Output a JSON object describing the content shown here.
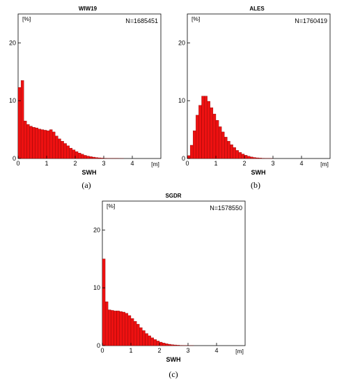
{
  "chart_data": [
    {
      "type": "bar",
      "panel_letter": "(a)",
      "title": "WIW19",
      "count_text": "N=1685451",
      "xlabel": "SWH",
      "x_unit": "[m]",
      "y_unit": "[%]",
      "bin_width": 0.1,
      "xlim": [
        0,
        5
      ],
      "ylim": [
        0,
        25
      ],
      "xticks": [
        0,
        1,
        2,
        3,
        4
      ],
      "yticks": [
        0,
        10,
        20
      ],
      "bar_color": "#ee1111",
      "values": [
        12.3,
        13.5,
        6.5,
        5.9,
        5.6,
        5.4,
        5.3,
        5.1,
        5.0,
        4.9,
        4.8,
        5.0,
        4.6,
        3.9,
        3.4,
        3.0,
        2.6,
        2.2,
        1.8,
        1.5,
        1.2,
        0.95,
        0.75,
        0.55,
        0.42,
        0.32,
        0.24,
        0.17,
        0.12,
        0.08,
        0.05,
        0.04,
        0.03,
        0.02,
        0.02,
        0.01,
        0.01
      ]
    },
    {
      "type": "bar",
      "panel_letter": "(b)",
      "title": "ALES",
      "count_text": "N=1760419",
      "xlabel": "SWH",
      "x_unit": "[m]",
      "y_unit": "[%]",
      "bin_width": 0.1,
      "xlim": [
        0,
        5
      ],
      "ylim": [
        0,
        25
      ],
      "xticks": [
        0,
        1,
        2,
        3,
        4
      ],
      "yticks": [
        0,
        10,
        20
      ],
      "bar_color": "#ee1111",
      "values": [
        0.5,
        2.3,
        4.8,
        7.5,
        9.2,
        10.8,
        10.8,
        9.9,
        8.8,
        7.7,
        6.6,
        5.5,
        4.6,
        3.7,
        3.0,
        2.4,
        1.9,
        1.4,
        1.05,
        0.78,
        0.56,
        0.4,
        0.28,
        0.18,
        0.12,
        0.08,
        0.05,
        0.03,
        0.02,
        0.01
      ]
    },
    {
      "type": "bar",
      "panel_letter": "(c)",
      "title": "SGDR",
      "count_text": "N=1578550",
      "xlabel": "SWH",
      "x_unit": "[m]",
      "y_unit": "[%]",
      "bin_width": 0.1,
      "xlim": [
        0,
        5
      ],
      "ylim": [
        0,
        25
      ],
      "xticks": [
        0,
        1,
        2,
        3,
        4
      ],
      "yticks": [
        0,
        10,
        20
      ],
      "bar_color": "#ee1111",
      "values": [
        15.0,
        7.6,
        6.2,
        6.1,
        6.0,
        6.0,
        5.9,
        5.8,
        5.6,
        5.2,
        4.7,
        4.2,
        3.7,
        3.1,
        2.6,
        2.1,
        1.7,
        1.35,
        1.05,
        0.8,
        0.6,
        0.45,
        0.33,
        0.24,
        0.17,
        0.12,
        0.08,
        0.05,
        0.035,
        0.02,
        0.015,
        0.01
      ]
    }
  ]
}
